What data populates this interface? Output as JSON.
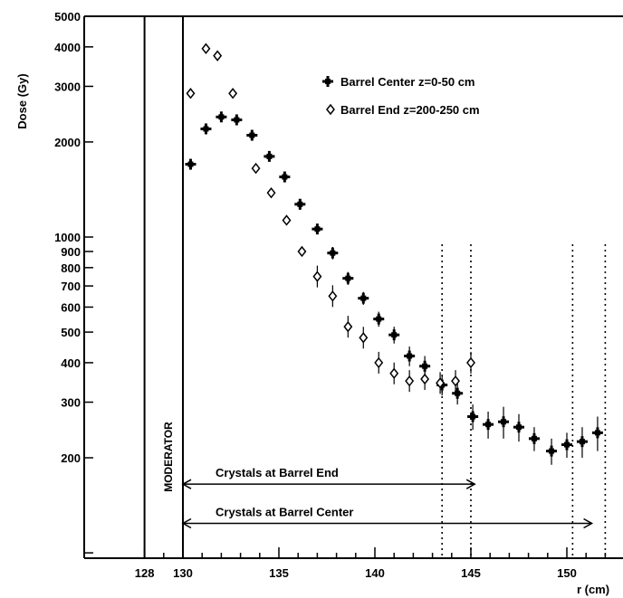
{
  "chart_data": {
    "type": "scatter",
    "title": "",
    "xlabel": "r (cm)",
    "ylabel": "Dose (Gy)",
    "xlim": [
      127,
      152.2
    ],
    "ylim": [
      100,
      5000
    ],
    "yscale": "log",
    "grid": false,
    "legend_position": "top-right",
    "x_ticks": [
      {
        "value": 128,
        "label": "128"
      },
      {
        "value": 130,
        "label": "130"
      },
      {
        "value": 135,
        "label": "135"
      },
      {
        "value": 140,
        "label": "140"
      },
      {
        "value": 145,
        "label": "145"
      },
      {
        "value": 150,
        "label": "150"
      }
    ],
    "y_ticks": [
      {
        "value": 5000,
        "label": "5000"
      },
      {
        "value": 4000,
        "label": "4000"
      },
      {
        "value": 3000,
        "label": "3000"
      },
      {
        "value": 2000,
        "label": "2000"
      },
      {
        "value": 1000,
        "label": "1000"
      },
      {
        "value": 900,
        "label": "900"
      },
      {
        "value": 800,
        "label": "800"
      },
      {
        "value": 700,
        "label": "700"
      },
      {
        "value": 600,
        "label": "600"
      },
      {
        "value": 500,
        "label": "500"
      },
      {
        "value": 400,
        "label": "400"
      },
      {
        "value": 300,
        "label": "300"
      },
      {
        "value": 200,
        "label": "200"
      }
    ],
    "series": [
      {
        "name": "Barrel Center z=0-50 cm",
        "marker": "filled-star",
        "x": [
          130.4,
          131.2,
          132.0,
          132.8,
          133.6,
          134.5,
          135.3,
          136.1,
          137.0,
          137.8,
          138.6,
          139.4,
          140.2,
          141.0,
          141.8,
          142.6,
          143.5,
          144.3,
          145.1,
          145.9,
          146.7,
          147.5,
          148.3,
          149.2,
          150.0,
          150.8,
          151.6
        ],
        "y": [
          1700,
          2200,
          2400,
          2350,
          2100,
          1800,
          1550,
          1270,
          1060,
          890,
          740,
          640,
          550,
          490,
          420,
          390,
          340,
          320,
          270,
          255,
          260,
          250,
          230,
          210,
          220,
          225,
          240
        ],
        "y_error": [
          60,
          60,
          70,
          70,
          70,
          60,
          50,
          50,
          40,
          40,
          35,
          30,
          30,
          30,
          30,
          30,
          25,
          25,
          25,
          25,
          30,
          25,
          20,
          20,
          20,
          25,
          30
        ]
      },
      {
        "name": "Barrel End z=200-250 cm",
        "marker": "open-circle",
        "x": [
          130.4,
          131.2,
          131.8,
          132.6,
          133.8,
          134.6,
          135.4,
          136.2,
          137.0,
          137.8,
          138.6,
          139.4,
          140.2,
          141.0,
          141.8,
          142.6,
          143.4,
          144.2,
          145.0
        ],
        "y": [
          2850,
          3950,
          3750,
          2850,
          1650,
          1380,
          1130,
          900,
          750,
          650,
          520,
          480,
          400,
          370,
          350,
          355,
          345,
          350,
          400
        ]
      }
    ],
    "reference_lines": {
      "solid_x": [
        128,
        130
      ],
      "dotted_x": [
        143.5,
        145.0,
        150.3,
        152.0
      ]
    },
    "annotations": {
      "vertical_label": "MODERATOR",
      "arrows": [
        {
          "label": "Crystals at Barrel End",
          "from": 130,
          "to": 145.2,
          "y": 165
        },
        {
          "label": "Crystals at Barrel Center",
          "from": 130,
          "to": 151.3,
          "y": 124
        }
      ]
    }
  }
}
